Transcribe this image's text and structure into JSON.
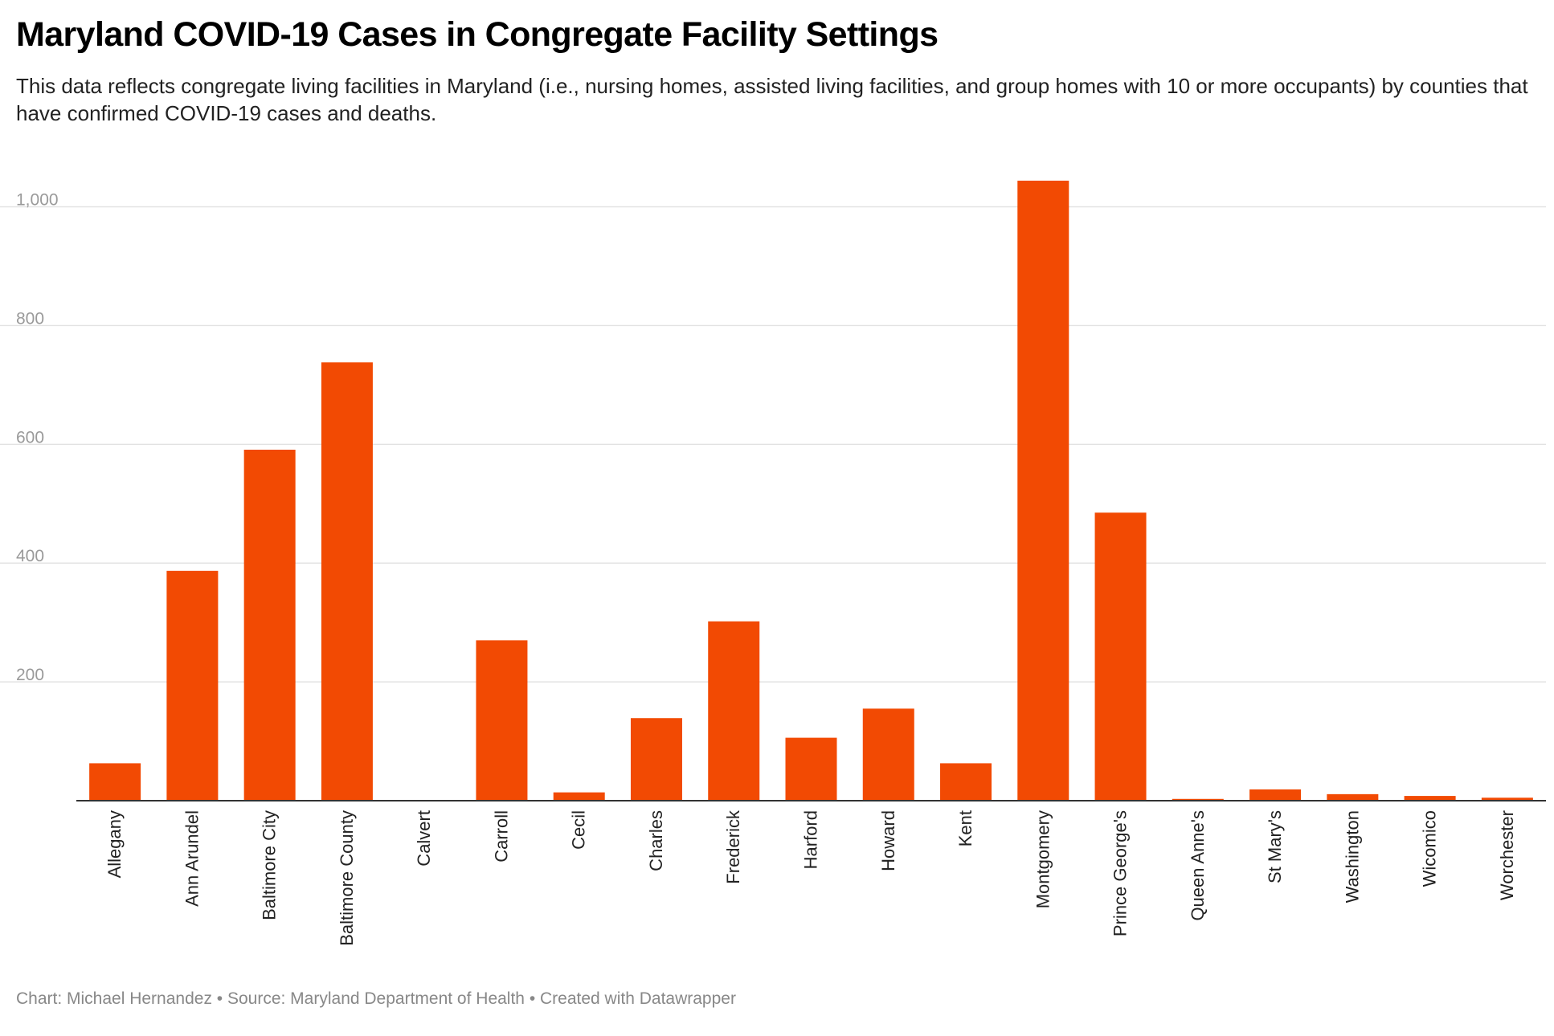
{
  "header": {
    "title": "Maryland COVID-19 Cases in Congregate Facility Settings",
    "subtitle": "This data reflects congregate living facilities in Maryland (i.e., nursing homes, assisted living facilities, and group homes with 10 or more occupants) by counties that have confirmed COVID-19 cases and deaths."
  },
  "footer": {
    "credit": "Chart: Michael Hernandez • Source: Maryland Department of Health • Created with Datawrapper"
  },
  "colors": {
    "bar": "#f24a03",
    "grid": "#e2e2e2",
    "axis": "#333333",
    "tick_text": "#9a9a9a"
  },
  "chart_data": {
    "type": "bar",
    "title": "Maryland COVID-19 Cases in Congregate Facility Settings",
    "xlabel": "",
    "ylabel": "",
    "ylim": [
      0,
      1050
    ],
    "yticks": [
      200,
      400,
      600,
      800,
      1000
    ],
    "ytick_labels": [
      "200",
      "400",
      "600",
      "800",
      "1,000"
    ],
    "grid": true,
    "categories": [
      "Allegany",
      "Ann Arundel",
      "Baltimore City",
      "Baltimore County",
      "Calvert",
      "Carroll",
      "Cecil",
      "Charles",
      "Frederick",
      "Harford",
      "Howard",
      "Kent",
      "Montgomery",
      "Prince George's",
      "Queen Anne's",
      "St Mary's",
      "Washington",
      "Wicomico",
      "Worchester"
    ],
    "values": [
      63,
      387,
      591,
      738,
      0,
      270,
      14,
      139,
      302,
      106,
      155,
      63,
      1044,
      485,
      3,
      19,
      11,
      8,
      5
    ]
  }
}
